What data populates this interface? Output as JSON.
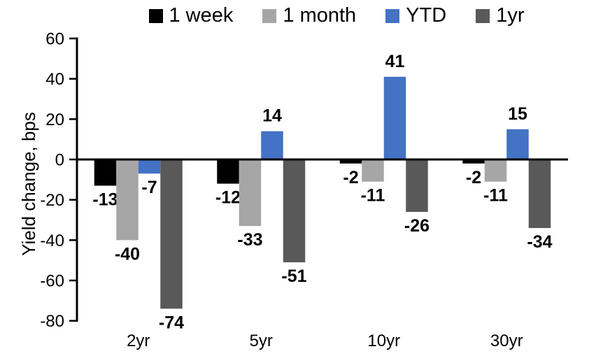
{
  "chart_data": {
    "type": "bar",
    "title": "",
    "xlabel": "",
    "ylabel": "Yield change, bps",
    "categories": [
      "2yr",
      "5yr",
      "10yr",
      "30yr"
    ],
    "series": [
      {
        "name": "1 week",
        "color": "#000000",
        "values": [
          -13,
          -12,
          -2,
          -2
        ]
      },
      {
        "name": "1 month",
        "color": "#a6a6a6",
        "values": [
          -40,
          -33,
          -11,
          -11
        ]
      },
      {
        "name": "YTD",
        "color": "#4472c4",
        "values": [
          -7,
          14,
          41,
          15
        ]
      },
      {
        "name": "1yr",
        "color": "#595959",
        "values": [
          -74,
          -51,
          -26,
          -34
        ]
      }
    ],
    "ylim": [
      -80,
      60
    ],
    "yticks": [
      60,
      40,
      20,
      0,
      -20,
      -40,
      -60,
      -80
    ],
    "grid": false,
    "legend_position": "top",
    "data_labels": true,
    "axis_color": "#000000"
  }
}
